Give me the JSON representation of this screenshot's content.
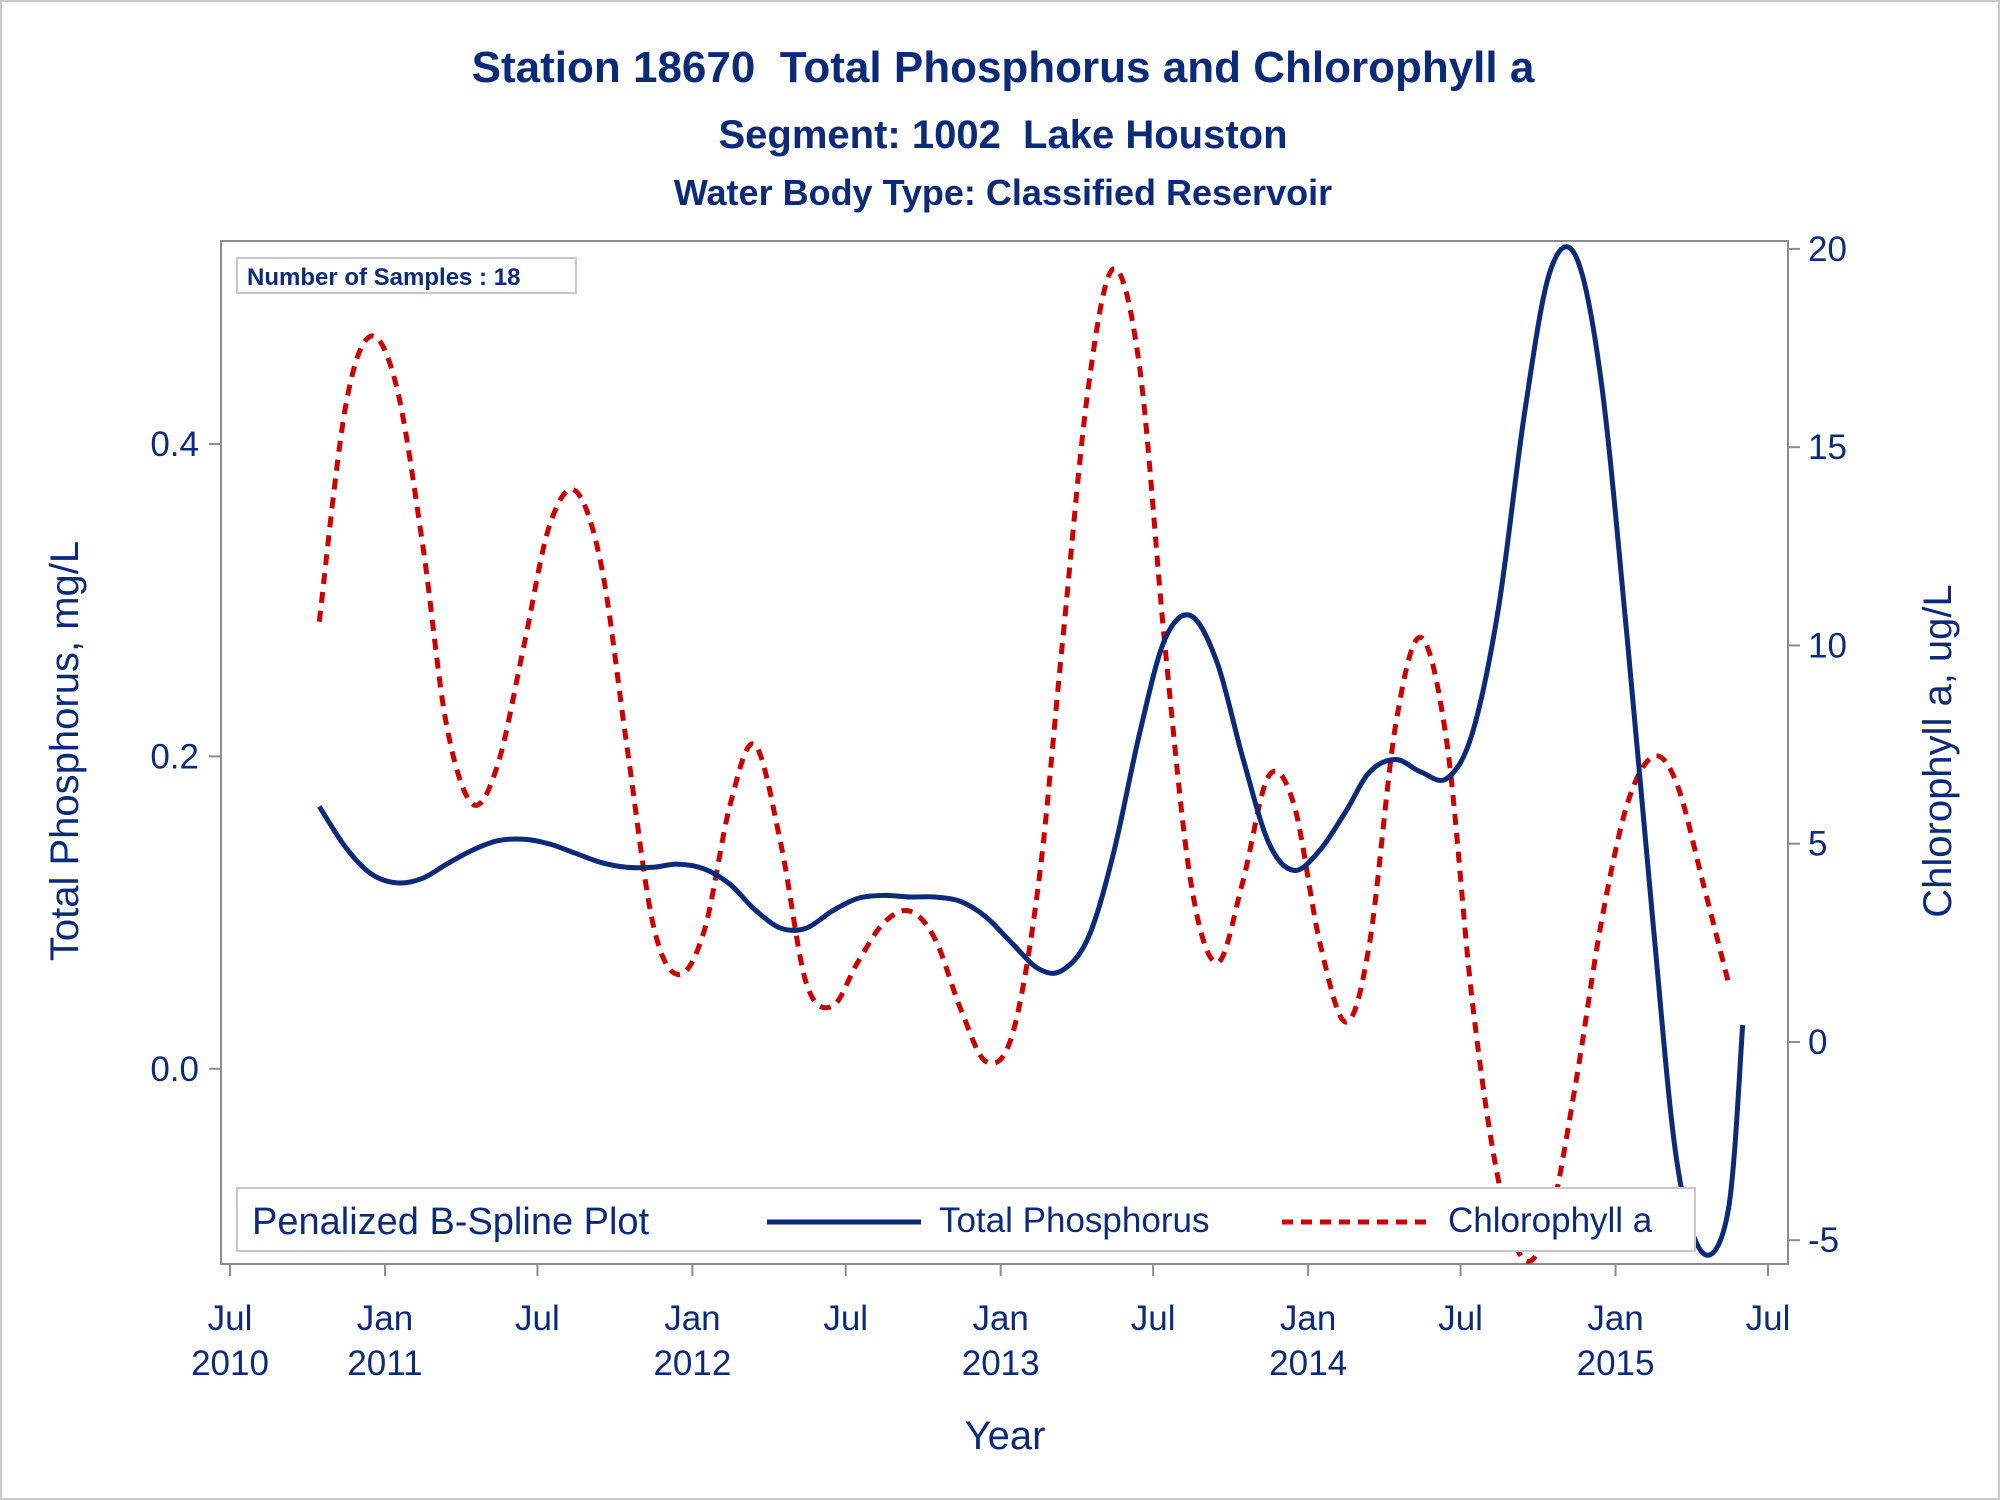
{
  "chart_data": {
    "type": "line",
    "title": "Station 18670  Total Phosphorus and Chlorophyll a",
    "subtitle": "Segment: 1002  Lake Houston",
    "subtitle2": "Water Body Type: Classified Reservoir",
    "xlabel": "Year",
    "ylabel": "Total Phosphorus, mg/L",
    "y2label": "Chlorophyll a, ug/L",
    "annotation": "Number of Samples : 18",
    "legend": {
      "title": "Penalized B-Spline Plot",
      "placement": "bottom-inside",
      "entries": [
        "Total Phosphorus",
        "Chlorophyll a"
      ]
    },
    "x_range": [
      "2010-07-01",
      "2015-07-01"
    ],
    "x_ticks": [
      {
        "date": "2010-07-01",
        "month": "Jul",
        "year": "2010"
      },
      {
        "date": "2011-01-01",
        "month": "Jan",
        "year": "2011"
      },
      {
        "date": "2011-07-01",
        "month": "Jul",
        "year": ""
      },
      {
        "date": "2012-01-01",
        "month": "Jan",
        "year": "2012"
      },
      {
        "date": "2012-07-01",
        "month": "Jul",
        "year": ""
      },
      {
        "date": "2013-01-01",
        "month": "Jan",
        "year": "2013"
      },
      {
        "date": "2013-07-01",
        "month": "Jul",
        "year": ""
      },
      {
        "date": "2014-01-01",
        "month": "Jan",
        "year": "2014"
      },
      {
        "date": "2014-07-01",
        "month": "Jul",
        "year": ""
      },
      {
        "date": "2015-01-01",
        "month": "Jan",
        "year": "2015"
      },
      {
        "date": "2015-07-01",
        "month": "Jul",
        "year": ""
      }
    ],
    "ylim": [
      -0.125,
      0.53
    ],
    "y_ticks": [
      "0.0",
      "0.2",
      "0.4"
    ],
    "y2lim": [
      -5.6,
      20.2
    ],
    "y2_ticks": [
      "-5",
      "0",
      "5",
      "10",
      "15",
      "20"
    ],
    "grid": false,
    "series": [
      {
        "name": "Total Phosphorus",
        "axis": "left",
        "color": "#0b2a7a",
        "style": "solid",
        "points": [
          [
            "2010-10-15",
            0.168
          ],
          [
            "2010-11-15",
            0.142
          ],
          [
            "2010-12-15",
            0.125
          ],
          [
            "2011-01-15",
            0.119
          ],
          [
            "2011-02-15",
            0.122
          ],
          [
            "2011-03-15",
            0.131
          ],
          [
            "2011-04-15",
            0.14
          ],
          [
            "2011-05-15",
            0.146
          ],
          [
            "2011-06-15",
            0.147
          ],
          [
            "2011-07-15",
            0.144
          ],
          [
            "2011-08-15",
            0.138
          ],
          [
            "2011-09-15",
            0.132
          ],
          [
            "2011-10-15",
            0.129
          ],
          [
            "2011-11-15",
            0.129
          ],
          [
            "2011-12-15",
            0.131
          ],
          [
            "2012-01-15",
            0.128
          ],
          [
            "2012-02-15",
            0.118
          ],
          [
            "2012-03-15",
            0.102
          ],
          [
            "2012-04-15",
            0.09
          ],
          [
            "2012-05-15",
            0.09
          ],
          [
            "2012-06-15",
            0.101
          ],
          [
            "2012-07-15",
            0.109
          ],
          [
            "2012-08-15",
            0.111
          ],
          [
            "2012-09-15",
            0.11
          ],
          [
            "2012-10-15",
            0.11
          ],
          [
            "2012-11-15",
            0.107
          ],
          [
            "2012-12-15",
            0.097
          ],
          [
            "2013-01-15",
            0.08
          ],
          [
            "2013-02-15",
            0.064
          ],
          [
            "2013-03-15",
            0.063
          ],
          [
            "2013-04-15",
            0.084
          ],
          [
            "2013-05-15",
            0.138
          ],
          [
            "2013-06-15",
            0.215
          ],
          [
            "2013-07-15",
            0.275
          ],
          [
            "2013-08-15",
            0.29
          ],
          [
            "2013-09-15",
            0.26
          ],
          [
            "2013-10-15",
            0.2
          ],
          [
            "2013-11-15",
            0.145
          ],
          [
            "2013-12-15",
            0.127
          ],
          [
            "2014-01-15",
            0.14
          ],
          [
            "2014-02-15",
            0.165
          ],
          [
            "2014-03-15",
            0.19
          ],
          [
            "2014-04-15",
            0.198
          ],
          [
            "2014-05-15",
            0.19
          ],
          [
            "2014-06-15",
            0.186
          ],
          [
            "2014-07-15",
            0.215
          ],
          [
            "2014-08-15",
            0.295
          ],
          [
            "2014-09-15",
            0.42
          ],
          [
            "2014-10-15",
            0.51
          ],
          [
            "2014-11-15",
            0.52
          ],
          [
            "2014-12-15",
            0.44
          ],
          [
            "2015-01-15",
            0.275
          ],
          [
            "2015-02-15",
            0.09
          ],
          [
            "2015-03-15",
            -0.06
          ],
          [
            "2015-04-15",
            -0.118
          ],
          [
            "2015-05-15",
            -0.09
          ],
          [
            "2015-06-01",
            0.028
          ]
        ]
      },
      {
        "name": "Chlorophyll a",
        "axis": "right",
        "color": "#cc0000",
        "style": "dashed",
        "points": [
          [
            "2010-10-15",
            10.6
          ],
          [
            "2010-11-15",
            16.0
          ],
          [
            "2010-12-15",
            17.8
          ],
          [
            "2011-01-15",
            16.5
          ],
          [
            "2011-02-15",
            12.5
          ],
          [
            "2011-03-15",
            8.0
          ],
          [
            "2011-04-15",
            6.0
          ],
          [
            "2011-05-15",
            7.0
          ],
          [
            "2011-06-15",
            10.0
          ],
          [
            "2011-07-15",
            13.0
          ],
          [
            "2011-08-15",
            13.9
          ],
          [
            "2011-09-15",
            12.0
          ],
          [
            "2011-10-15",
            7.5
          ],
          [
            "2011-11-15",
            3.0
          ],
          [
            "2011-12-15",
            1.7
          ],
          [
            "2012-01-15",
            2.8
          ],
          [
            "2012-02-15",
            6.0
          ],
          [
            "2012-03-15",
            7.5
          ],
          [
            "2012-04-15",
            5.0
          ],
          [
            "2012-05-15",
            1.5
          ],
          [
            "2012-06-15",
            0.9
          ],
          [
            "2012-07-15",
            2.0
          ],
          [
            "2012-08-15",
            3.0
          ],
          [
            "2012-09-15",
            3.3
          ],
          [
            "2012-10-15",
            2.6
          ],
          [
            "2012-11-15",
            0.8
          ],
          [
            "2012-12-15",
            -0.5
          ],
          [
            "2013-01-15",
            0.2
          ],
          [
            "2013-02-15",
            4.0
          ],
          [
            "2013-03-15",
            10.0
          ],
          [
            "2013-04-15",
            16.5
          ],
          [
            "2013-05-15",
            19.5
          ],
          [
            "2013-06-15",
            17.0
          ],
          [
            "2013-07-15",
            10.0
          ],
          [
            "2013-08-15",
            4.0
          ],
          [
            "2013-09-15",
            2.0
          ],
          [
            "2013-10-15",
            4.0
          ],
          [
            "2013-11-15",
            6.7
          ],
          [
            "2013-12-15",
            6.0
          ],
          [
            "2014-01-15",
            2.5
          ],
          [
            "2014-02-15",
            0.5
          ],
          [
            "2014-03-15",
            2.5
          ],
          [
            "2014-04-15",
            8.0
          ],
          [
            "2014-05-15",
            10.2
          ],
          [
            "2014-06-15",
            7.5
          ],
          [
            "2014-07-15",
            1.0
          ],
          [
            "2014-08-15",
            -3.5
          ],
          [
            "2014-09-15",
            -5.5
          ],
          [
            "2014-10-15",
            -4.5
          ],
          [
            "2014-11-15",
            -1.0
          ],
          [
            "2014-12-15",
            3.0
          ],
          [
            "2015-01-15",
            6.0
          ],
          [
            "2015-02-15",
            7.2
          ],
          [
            "2015-03-15",
            6.5
          ],
          [
            "2015-04-15",
            4.0
          ],
          [
            "2015-05-15",
            1.5
          ]
        ]
      }
    ]
  }
}
